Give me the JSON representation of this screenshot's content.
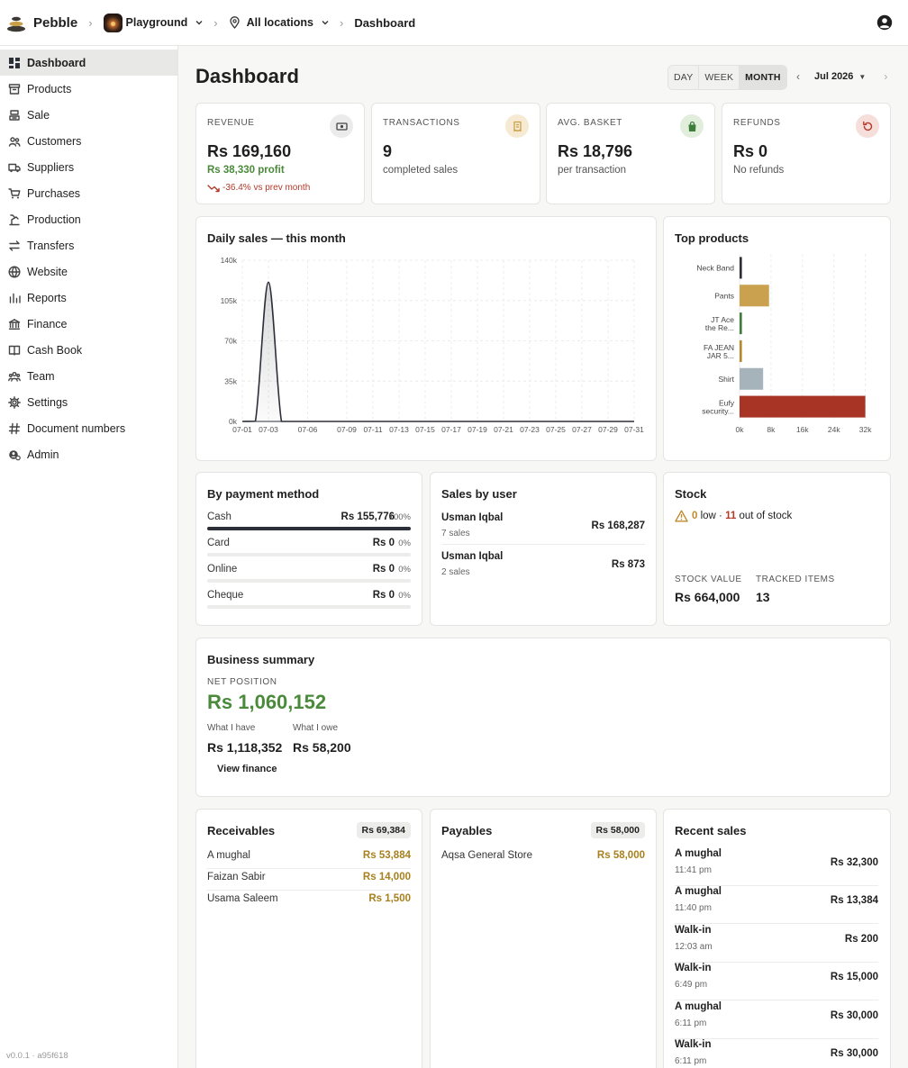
{
  "header": {
    "brand": "Pebble",
    "org": "Playground",
    "location": "All locations",
    "page": "Dashboard"
  },
  "sidebar": {
    "items": [
      {
        "label": "Dashboard",
        "icon": "dashboard-icon",
        "active": true
      },
      {
        "label": "Products",
        "icon": "box-icon"
      },
      {
        "label": "Sale",
        "icon": "register-icon"
      },
      {
        "label": "Customers",
        "icon": "people-icon"
      },
      {
        "label": "Suppliers",
        "icon": "truck-icon"
      },
      {
        "label": "Purchases",
        "icon": "cart-icon"
      },
      {
        "label": "Production",
        "icon": "production-icon"
      },
      {
        "label": "Transfers",
        "icon": "transfer-icon"
      },
      {
        "label": "Website",
        "icon": "globe-icon"
      },
      {
        "label": "Reports",
        "icon": "bar-chart-icon"
      },
      {
        "label": "Finance",
        "icon": "bank-icon"
      },
      {
        "label": "Cash Book",
        "icon": "book-icon"
      },
      {
        "label": "Team",
        "icon": "team-icon"
      },
      {
        "label": "Settings",
        "icon": "gear-icon"
      },
      {
        "label": "Document numbers",
        "icon": "hash-icon"
      },
      {
        "label": "Admin",
        "icon": "admin-icon"
      }
    ],
    "version": "v0.0.1 · a95f618"
  },
  "page": {
    "title": "Dashboard",
    "range_options": [
      "DAY",
      "WEEK",
      "MONTH"
    ],
    "range_selected": "MONTH",
    "period": "Jul 2026"
  },
  "kpis": [
    {
      "label": "REVENUE",
      "value": "Rs 169,160",
      "sub": "Rs 38,330 profit",
      "trend": "-36.4% vs prev month",
      "icon": "cash-icon",
      "color": "#ebebeb"
    },
    {
      "label": "TRANSACTIONS",
      "value": "9",
      "sub": "completed sales",
      "icon": "receipt-icon",
      "color": "#f6ead2"
    },
    {
      "label": "AVG. BASKET",
      "value": "Rs 18,796",
      "sub": "per transaction",
      "icon": "bag-icon",
      "color": "#e1eedc"
    },
    {
      "label": "REFUNDS",
      "value": "Rs 0",
      "sub": "No refunds",
      "icon": "refund-icon",
      "color": "#f6dedb"
    }
  ],
  "daily_sales": {
    "title": "Daily sales — this month",
    "y_ticks": [
      "0k",
      "35k",
      "70k",
      "105k",
      "140k"
    ],
    "x_ticks": [
      "07-01",
      "07-03",
      "07-06",
      "07-09",
      "07-11",
      "07-13",
      "07-15",
      "07-17",
      "07-19",
      "07-21",
      "07-23",
      "07-25",
      "07-27",
      "07-29",
      "07-31"
    ]
  },
  "top_products": {
    "title": "Top products",
    "x_ticks": [
      "0k",
      "8k",
      "16k",
      "24k",
      "32k"
    ]
  },
  "chart_data": [
    {
      "type": "area",
      "title": "Daily sales — this month",
      "x": [
        "07-01",
        "07-02",
        "07-03",
        "07-04",
        "07-05",
        "07-06",
        "07-07",
        "07-08",
        "07-09",
        "07-10",
        "07-11",
        "07-12",
        "07-13",
        "07-14",
        "07-15",
        "07-16",
        "07-17",
        "07-18",
        "07-19",
        "07-20",
        "07-21",
        "07-22",
        "07-23",
        "07-24",
        "07-25",
        "07-26",
        "07-27",
        "07-28",
        "07-29",
        "07-30",
        "07-31"
      ],
      "series": [
        {
          "values": [
            0,
            200,
            121000,
            0,
            0,
            0,
            0,
            0,
            0,
            0,
            0,
            0,
            0,
            0,
            0,
            0,
            0,
            0,
            0,
            0,
            0,
            0,
            0,
            0,
            0,
            0,
            0,
            0,
            0,
            0,
            0
          ]
        }
      ],
      "ylim": [
        0,
        140000
      ],
      "grid": true,
      "color": "#2d2f38"
    },
    {
      "type": "bar",
      "orientation": "horizontal",
      "title": "Top products",
      "categories": [
        "Neck Band",
        "Pants",
        "JT Ace the Re...",
        "FA JEAN JAR 5...",
        "Shirt",
        "Eufy security..."
      ],
      "values": [
        600,
        7500,
        600,
        600,
        6000,
        32000
      ],
      "colors": [
        "#2d2f38",
        "#caa14e",
        "#3f7d3a",
        "#b8892b",
        "#a7b3bb",
        "#a73424"
      ],
      "xlim": [
        0,
        33000
      ],
      "grid": true
    }
  ],
  "payment_method": {
    "title": "By payment method",
    "rows": [
      {
        "name": "Cash",
        "amount": "Rs 155,776",
        "pct": "100%",
        "fill": 1.0
      },
      {
        "name": "Card",
        "amount": "Rs 0",
        "pct": "0%",
        "fill": 0
      },
      {
        "name": "Online",
        "amount": "Rs 0",
        "pct": "0%",
        "fill": 0
      },
      {
        "name": "Cheque",
        "amount": "Rs 0",
        "pct": "0%",
        "fill": 0
      }
    ]
  },
  "sales_by_user": {
    "title": "Sales by user",
    "rows": [
      {
        "name": "Usman Iqbal",
        "count": "7 sales",
        "amount": "Rs 168,287"
      },
      {
        "name": "Usman Iqbal",
        "count": "2 sales",
        "amount": "Rs 873"
      }
    ]
  },
  "stock": {
    "title": "Stock",
    "low": "0",
    "low_text": "low ·",
    "oos": "11",
    "oos_text": "out of stock",
    "value_label": "STOCK VALUE",
    "value": "Rs 664,000",
    "tracked_label": "TRACKED ITEMS",
    "tracked": "13"
  },
  "business": {
    "title": "Business summary",
    "net_label": "NET POSITION",
    "net_value": "Rs 1,060,152",
    "have_label": "What I have",
    "have_value": "Rs 1,118,352",
    "owe_label": "What I owe",
    "owe_value": "Rs 58,200",
    "link": "View finance"
  },
  "receivables": {
    "title": "Receivables",
    "total": "Rs 69,384",
    "rows": [
      {
        "name": "A mughal",
        "amount": "Rs 53,884"
      },
      {
        "name": "Faizan Sabir",
        "amount": "Rs 14,000"
      },
      {
        "name": "Usama Saleem",
        "amount": "Rs 1,500"
      }
    ]
  },
  "payables": {
    "title": "Payables",
    "total": "Rs 58,000",
    "rows": [
      {
        "name": "Aqsa General Store",
        "amount": "Rs 58,000"
      }
    ]
  },
  "recent_sales": {
    "title": "Recent sales",
    "rows": [
      {
        "name": "A mughal",
        "time": "11:41 pm",
        "amount": "Rs 32,300"
      },
      {
        "name": "A mughal",
        "time": "11:40 pm",
        "amount": "Rs 13,384"
      },
      {
        "name": "Walk-in",
        "time": "12:03 am",
        "amount": "Rs 200"
      },
      {
        "name": "Walk-in",
        "time": "6:49 pm",
        "amount": "Rs 15,000"
      },
      {
        "name": "A mughal",
        "time": "6:11 pm",
        "amount": "Rs 30,000"
      },
      {
        "name": "Walk-in",
        "time": "6:11 pm",
        "amount": "Rs 30,000"
      }
    ]
  }
}
